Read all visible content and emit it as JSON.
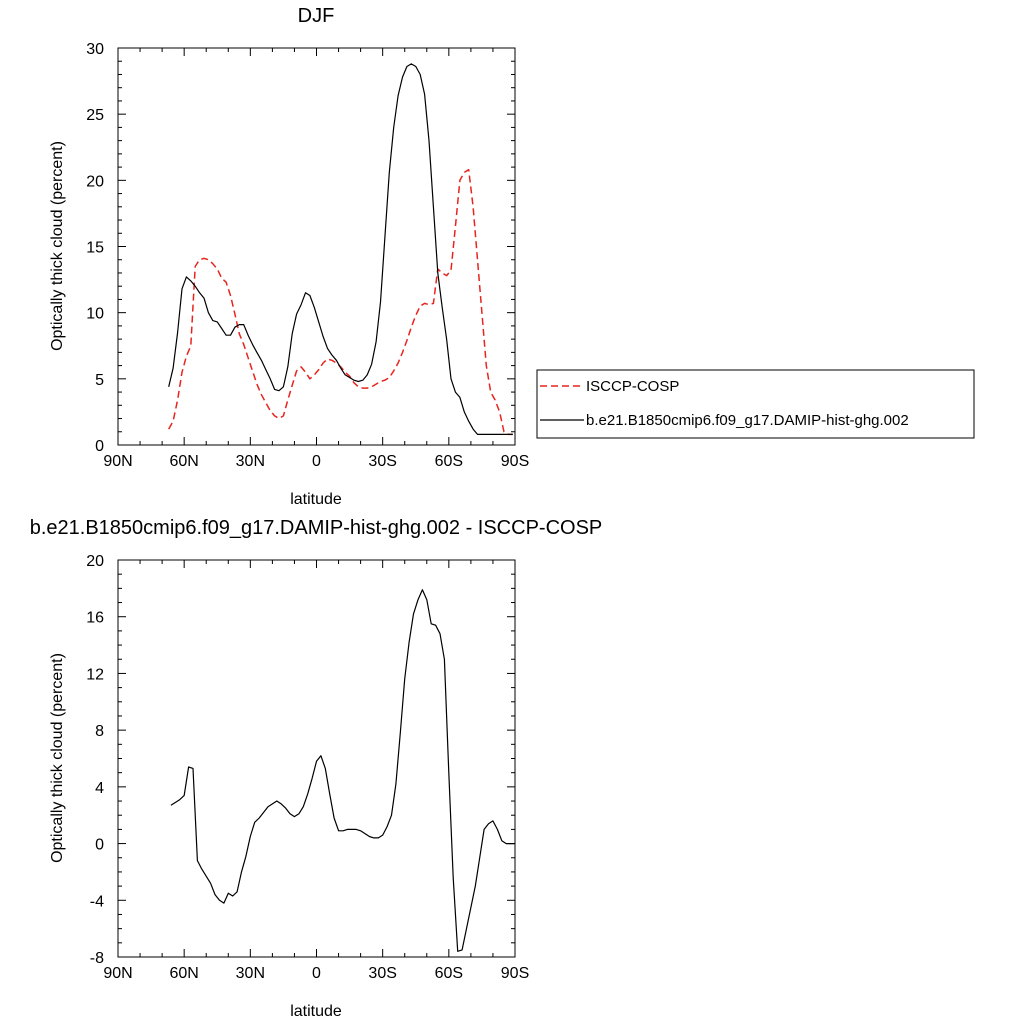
{
  "chart_data": [
    {
      "type": "line",
      "title": "DJF",
      "xlabel": "latitude",
      "ylabel": "Optically thick cloud (percent)",
      "xlim": [
        90,
        -90
      ],
      "ylim": [
        0,
        30
      ],
      "x_ticks": [
        90,
        60,
        30,
        0,
        -30,
        -60,
        -90
      ],
      "x_tick_labels": [
        "90N",
        "60N",
        "30N",
        "0",
        "30S",
        "60S",
        "90S"
      ],
      "y_ticks": [
        0,
        5,
        10,
        15,
        20,
        25,
        30
      ],
      "y_tick_labels": [
        "0",
        "5",
        "10",
        "15",
        "20",
        "25",
        "30"
      ],
      "legend": "right",
      "series": [
        {
          "name": "ISCCP-COSP",
          "color": "#e8241e",
          "dash": "dashed",
          "x": [
            67,
            65,
            63,
            61,
            59,
            57,
            55,
            53,
            51,
            49,
            47,
            45,
            43,
            41,
            39,
            37,
            35,
            33,
            31,
            29,
            27,
            25,
            23,
            21,
            19,
            17,
            15,
            13,
            11,
            9,
            7,
            5,
            3,
            1,
            -1,
            -3,
            -5,
            -7,
            -9,
            -11,
            -13,
            -15,
            -17,
            -19,
            -21,
            -23,
            -25,
            -27,
            -29,
            -31,
            -33,
            -35,
            -37,
            -39,
            -41,
            -43,
            -45,
            -47,
            -49,
            -51,
            -53,
            -55,
            -57,
            -59,
            -61,
            -63,
            -65,
            -67,
            -69,
            -71,
            -73,
            -75,
            -77,
            -79,
            -81,
            -83,
            -85,
            -87,
            -89
          ],
          "values": [
            1.2,
            1.8,
            3.4,
            5.5,
            6.7,
            7.5,
            13.5,
            14.0,
            14.1,
            14.0,
            13.7,
            13.3,
            12.6,
            12.3,
            11.3,
            9.9,
            8.4,
            7.6,
            6.6,
            5.6,
            4.6,
            3.8,
            3.2,
            2.6,
            2.2,
            2.0,
            2.2,
            3.4,
            4.5,
            5.6,
            5.9,
            5.5,
            5.0,
            5.3,
            5.7,
            6.2,
            6.5,
            6.4,
            6.2,
            5.9,
            5.5,
            5.2,
            4.7,
            4.4,
            4.3,
            4.3,
            4.4,
            4.6,
            4.8,
            4.9,
            5.1,
            5.6,
            6.2,
            7.0,
            7.9,
            8.9,
            9.8,
            10.5,
            10.7,
            10.6,
            10.7,
            13.3,
            13.0,
            12.8,
            13.2,
            16.5,
            20.0,
            20.6,
            20.8,
            18.0,
            14.0,
            10.0,
            6.0,
            4.0,
            3.4,
            2.5,
            1.0,
            0.8,
            0.8
          ]
        },
        {
          "name": "b.e21.B1850cmip6.f09_g17.DAMIP-hist-ghg.002",
          "color": "#000000",
          "dash": "solid",
          "x": [
            67,
            65,
            63,
            61,
            59,
            57,
            55,
            53,
            51,
            49,
            47,
            45,
            43,
            41,
            39,
            37,
            35,
            33,
            31,
            29,
            27,
            25,
            23,
            21,
            19,
            17,
            15,
            13,
            11,
            9,
            7,
            5,
            3,
            1,
            -1,
            -3,
            -5,
            -7,
            -9,
            -11,
            -13,
            -15,
            -17,
            -19,
            -21,
            -23,
            -25,
            -27,
            -29,
            -31,
            -33,
            -35,
            -37,
            -39,
            -41,
            -43,
            -45,
            -47,
            -49,
            -51,
            -53,
            -55,
            -57,
            -59,
            -61,
            -63,
            -65,
            -67,
            -69,
            -71,
            -73,
            -75,
            -77,
            -79,
            -81,
            -83,
            -85,
            -87,
            -89
          ],
          "values": [
            4.4,
            5.8,
            8.5,
            11.8,
            12.7,
            12.4,
            12.0,
            11.5,
            11.1,
            10.0,
            9.4,
            9.3,
            8.8,
            8.3,
            8.3,
            8.9,
            9.1,
            9.1,
            8.3,
            7.6,
            7.0,
            6.4,
            5.7,
            5.0,
            4.2,
            4.1,
            4.4,
            5.9,
            8.4,
            9.9,
            10.6,
            11.5,
            11.3,
            10.4,
            9.3,
            8.2,
            7.3,
            6.8,
            6.4,
            5.8,
            5.3,
            5.1,
            4.9,
            4.8,
            4.9,
            5.3,
            6.1,
            7.8,
            10.8,
            15.7,
            20.6,
            24.0,
            26.4,
            27.8,
            28.6,
            28.8,
            28.6,
            28.0,
            26.5,
            23.0,
            18.0,
            13.0,
            10.4,
            8.0,
            5.0,
            4.0,
            3.6,
            2.5,
            1.8,
            1.2,
            0.8,
            0.8,
            0.8,
            0.8,
            0.8,
            0.8,
            0.8,
            0.8,
            0.8
          ]
        }
      ]
    },
    {
      "type": "line",
      "title": "b.e21.B1850cmip6.f09_g17.DAMIP-hist-ghg.002 - ISCCP-COSP",
      "xlabel": "latitude",
      "ylabel": "Optically thick cloud (percent)",
      "xlim": [
        90,
        -90
      ],
      "ylim": [
        -8,
        20
      ],
      "x_ticks": [
        90,
        60,
        30,
        0,
        -30,
        -60,
        -90
      ],
      "x_tick_labels": [
        "90N",
        "60N",
        "30N",
        "0",
        "30S",
        "60S",
        "90S"
      ],
      "y_ticks": [
        -8,
        -4,
        0,
        4,
        8,
        12,
        16,
        20
      ],
      "y_tick_labels": [
        "-8",
        "-4",
        "0",
        "4",
        "8",
        "12",
        "16",
        "20"
      ],
      "series": [
        {
          "color": "#000000",
          "dash": "solid",
          "x": [
            66,
            64,
            62,
            60,
            58,
            56,
            54,
            52,
            50,
            48,
            46,
            44,
            42,
            40,
            38,
            36,
            34,
            32,
            30,
            28,
            26,
            24,
            22,
            20,
            18,
            16,
            14,
            12,
            10,
            8,
            6,
            4,
            2,
            0,
            -2,
            -4,
            -6,
            -8,
            -10,
            -12,
            -14,
            -16,
            -18,
            -20,
            -22,
            -24,
            -26,
            -28,
            -30,
            -32,
            -34,
            -36,
            -38,
            -40,
            -42,
            -44,
            -46,
            -48,
            -50,
            -52,
            -54,
            -56,
            -58,
            -60,
            -62,
            -64,
            -66,
            -68,
            -70,
            -72,
            -74,
            -76,
            -78,
            -80,
            -82,
            -84,
            -86,
            -88,
            -90
          ],
          "values": [
            2.7,
            2.9,
            3.1,
            3.4,
            5.4,
            5.3,
            -1.2,
            -1.8,
            -2.3,
            -2.8,
            -3.6,
            -4.0,
            -4.2,
            -3.5,
            -3.7,
            -3.4,
            -2.0,
            -0.9,
            0.5,
            1.5,
            1.8,
            2.2,
            2.6,
            2.8,
            3.0,
            2.8,
            2.5,
            2.1,
            1.9,
            2.1,
            2.6,
            3.5,
            4.6,
            5.8,
            6.2,
            5.3,
            3.5,
            1.8,
            0.9,
            0.9,
            1.0,
            1.0,
            1.0,
            0.9,
            0.7,
            0.5,
            0.4,
            0.4,
            0.6,
            1.2,
            2.0,
            4.2,
            7.8,
            11.6,
            14.2,
            16.2,
            17.2,
            17.9,
            17.2,
            15.5,
            15.4,
            14.8,
            13.0,
            5.0,
            -2.4,
            -7.6,
            -7.5,
            -6.0,
            -4.5,
            -3.0,
            -1.0,
            1.0,
            1.4,
            1.6,
            1.0,
            0.2,
            0.0,
            0.0,
            0.0
          ]
        }
      ]
    }
  ]
}
